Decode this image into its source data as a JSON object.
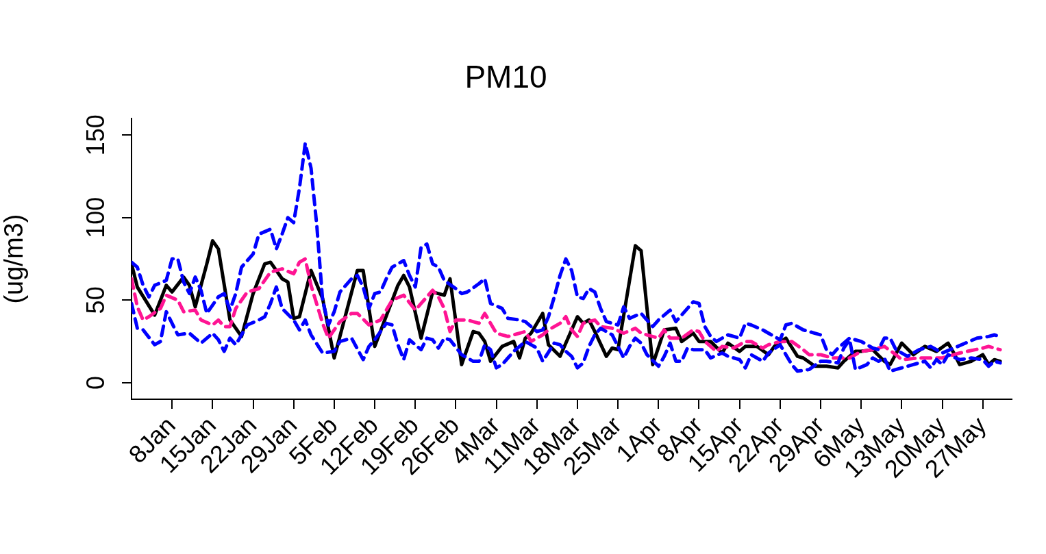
{
  "chart_data": {
    "type": "line",
    "title": "PM10",
    "ylabel": "(ug/m3)",
    "xlim": [
      "--01-01",
      "--06-01"
    ],
    "ylim": [
      -10,
      160
    ],
    "yticks": [
      0,
      50,
      100,
      150
    ],
    "xticks": [
      {
        "value": "--01-08",
        "label": "8Jan"
      },
      {
        "value": "--01-15",
        "label": "15Jan"
      },
      {
        "value": "--01-22",
        "label": "22Jan"
      },
      {
        "value": "--01-29",
        "label": "29Jan"
      },
      {
        "value": "--02-05",
        "label": "5Feb"
      },
      {
        "value": "--02-12",
        "label": "12Feb"
      },
      {
        "value": "--02-19",
        "label": "19Feb"
      },
      {
        "value": "--02-26",
        "label": "26Feb"
      },
      {
        "value": "--03-04",
        "label": "4Mar"
      },
      {
        "value": "--03-11",
        "label": "11Mar"
      },
      {
        "value": "--03-18",
        "label": "18Mar"
      },
      {
        "value": "--03-25",
        "label": "25Mar"
      },
      {
        "value": "--04-01",
        "label": "1Apr"
      },
      {
        "value": "--04-08",
        "label": "8Apr"
      },
      {
        "value": "--04-15",
        "label": "15Apr"
      },
      {
        "value": "--04-22",
        "label": "22Apr"
      },
      {
        "value": "--04-29",
        "label": "29Apr"
      },
      {
        "value": "--05-06",
        "label": "6May"
      },
      {
        "value": "--05-13",
        "label": "13May"
      },
      {
        "value": "--05-20",
        "label": "20May"
      },
      {
        "value": "--05-27",
        "label": "27May"
      }
    ],
    "grid": false,
    "legend": false,
    "marker": "none",
    "series": [
      {
        "color": "#0000ff",
        "line_style": "dashed",
        "x": [
          "--01-01",
          "--01-02",
          "--01-03",
          "--01-04",
          "--01-05",
          "--01-07",
          "--01-08",
          "--01-09",
          "--01-10",
          "--01-11",
          "--01-12",
          "--01-13",
          "--01-14",
          "--01-16",
          "--01-17",
          "--01-18",
          "--01-19",
          "--01-20",
          "--01-22",
          "--01-23",
          "--01-25",
          "--01-26",
          "--01-27",
          "--01-28",
          "--01-29",
          "--01-30",
          "--01-31",
          "--02-01",
          "--02-02",
          "--02-03",
          "--02-04",
          "--02-05",
          "--02-06",
          "--02-08",
          "--02-09",
          "--02-10",
          "--02-11",
          "--02-12",
          "--02-13",
          "--02-14",
          "--02-15",
          "--02-17",
          "--02-18",
          "--02-19",
          "--02-20",
          "--02-21",
          "--02-22",
          "--02-23",
          "--02-24",
          "--02-26",
          "--02-27",
          "--02-28",
          "--03-01",
          "--03-02",
          "--03-03",
          "--03-05",
          "--03-06",
          "--03-08",
          "--03-09",
          "--03-11",
          "--03-12",
          "--03-13",
          "--03-14",
          "--03-15",
          "--03-16",
          "--03-17",
          "--03-18",
          "--03-19",
          "--03-20",
          "--03-21",
          "--03-22",
          "--03-23",
          "--03-25",
          "--03-26",
          "--03-27",
          "--03-29",
          "--03-31",
          "--04-01",
          "--04-03",
          "--04-04",
          "--04-05",
          "--04-07",
          "--04-08",
          "--04-09",
          "--04-10",
          "--04-11",
          "--04-13",
          "--04-15",
          "--04-16",
          "--04-17",
          "--04-19",
          "--04-21",
          "--04-22",
          "--04-23",
          "--04-24",
          "--04-26",
          "--04-28",
          "--04-29",
          "--04-30",
          "--05-01",
          "--05-02",
          "--05-04",
          "--05-06",
          "--05-08",
          "--05-09",
          "--05-10",
          "--05-11",
          "--05-12",
          "--05-14",
          "--05-16",
          "--05-18",
          "--05-20",
          "--05-22",
          "--05-24",
          "--05-26",
          "--05-28",
          "--05-29",
          "--05-30"
        ],
        "values": [
          73,
          70,
          59,
          52,
          59,
          62,
          75,
          75,
          61,
          54,
          64,
          56,
          42,
          52,
          54,
          44,
          54,
          70,
          78,
          90,
          93,
          81,
          90,
          100,
          97,
          118,
          145,
          130,
          95,
          50,
          35,
          43,
          55,
          63,
          65,
          58,
          45,
          54,
          55,
          63,
          70,
          74,
          65,
          58,
          82,
          84,
          72,
          70,
          62,
          57,
          54,
          55,
          60,
          63,
          48,
          45,
          39,
          38,
          37,
          31,
          32,
          40,
          52,
          65,
          75,
          68,
          52,
          51,
          57,
          55,
          45,
          37,
          35,
          46,
          39,
          42,
          34,
          38,
          44,
          37,
          41,
          49,
          48,
          34,
          28,
          25,
          29,
          27,
          36,
          35,
          32,
          28,
          26,
          35,
          36,
          32,
          30,
          29,
          20,
          17,
          21,
          27,
          25,
          21,
          20,
          27,
          27,
          20,
          16,
          20,
          22,
          18,
          21,
          24,
          27,
          28,
          29,
          28
        ]
      },
      {
        "color": "#0000ff",
        "line_style": "dashed",
        "x": [
          "--01-01",
          "--01-02",
          "--01-03",
          "--01-05",
          "--01-06",
          "--01-07",
          "--01-09",
          "--01-11",
          "--01-12",
          "--01-13",
          "--01-15",
          "--01-16",
          "--01-17",
          "--01-18",
          "--01-19",
          "--01-21",
          "--01-23",
          "--01-24",
          "--01-25",
          "--01-26",
          "--01-27",
          "--01-29",
          "--01-30",
          "--01-31",
          "--02-01",
          "--02-03",
          "--02-05",
          "--02-06",
          "--02-08",
          "--02-10",
          "--02-11",
          "--02-12",
          "--02-14",
          "--02-15",
          "--02-16",
          "--02-17",
          "--02-18",
          "--02-20",
          "--02-21",
          "--02-22",
          "--02-23",
          "--02-24",
          "--02-25",
          "--02-27",
          "--02-29",
          "--03-01",
          "--03-02",
          "--03-03",
          "--03-04",
          "--03-05",
          "--03-06",
          "--03-07",
          "--03-09",
          "--03-11",
          "--03-12",
          "--03-14",
          "--03-15",
          "--03-16",
          "--03-17",
          "--03-18",
          "--03-19",
          "--03-20",
          "--03-21",
          "--03-22",
          "--03-24",
          "--03-26",
          "--03-27",
          "--03-28",
          "--03-29",
          "--03-30",
          "--04-01",
          "--04-02",
          "--04-03",
          "--04-04",
          "--04-05",
          "--04-06",
          "--04-07",
          "--04-09",
          "--04-10",
          "--04-12",
          "--04-13",
          "--04-14",
          "--04-15",
          "--04-16",
          "--04-17",
          "--04-19",
          "--04-20",
          "--04-22",
          "--04-23",
          "--04-24",
          "--04-25",
          "--04-27",
          "--04-29",
          "--04-30",
          "--05-02",
          "--05-03",
          "--05-04",
          "--05-05",
          "--05-07",
          "--05-08",
          "--05-09",
          "--05-10",
          "--05-11",
          "--05-13",
          "--05-15",
          "--05-17",
          "--05-18",
          "--05-19",
          "--05-20",
          "--05-21",
          "--05-23",
          "--05-25",
          "--05-27",
          "--05-28",
          "--05-29",
          "--05-30"
        ],
        "values": [
          48,
          33,
          32,
          23,
          25,
          43,
          29,
          30,
          27,
          24,
          30,
          26,
          19,
          27,
          23,
          35,
          38,
          40,
          48,
          58,
          45,
          38,
          32,
          38,
          29,
          18,
          19,
          25,
          27,
          14,
          22,
          26,
          36,
          35,
          23,
          14,
          26,
          20,
          27,
          26,
          21,
          27,
          26,
          17,
          13,
          13,
          23,
          20,
          9,
          11,
          15,
          19,
          25,
          21,
          13,
          24,
          23,
          19,
          16,
          9,
          12,
          22,
          29,
          33,
          29,
          15,
          22,
          27,
          24,
          17,
          10,
          16,
          24,
          13,
          13,
          21,
          20,
          20,
          15,
          18,
          16,
          15,
          14,
          9,
          17,
          13,
          18,
          23,
          17,
          11,
          7,
          8,
          13,
          13,
          12,
          21,
          26,
          8,
          11,
          15,
          13,
          15,
          7,
          9,
          11,
          13,
          9,
          14,
          11,
          17,
          14,
          15,
          14,
          10,
          13,
          12
        ]
      },
      {
        "color": "#ff1493",
        "line_style": "dashed",
        "x": [
          "--01-01",
          "--01-02",
          "--01-03",
          "--01-04",
          "--01-06",
          "--01-07",
          "--01-09",
          "--01-10",
          "--01-12",
          "--01-13",
          "--01-15",
          "--01-16",
          "--01-17",
          "--01-18",
          "--01-19",
          "--01-21",
          "--01-23",
          "--01-25",
          "--01-27",
          "--01-29",
          "--01-30",
          "--01-31",
          "--02-01",
          "--02-03",
          "--02-04",
          "--02-06",
          "--02-08",
          "--02-09",
          "--02-11",
          "--02-13",
          "--02-15",
          "--02-17",
          "--02-19",
          "--02-20",
          "--02-22",
          "--02-23",
          "--02-24",
          "--02-25",
          "--02-26",
          "--02-28",
          "--03-01",
          "--03-02",
          "--03-04",
          "--03-06",
          "--03-07",
          "--03-09",
          "--03-10",
          "--03-12",
          "--03-13",
          "--03-15",
          "--03-16",
          "--03-17",
          "--03-18",
          "--03-19",
          "--03-21",
          "--03-22",
          "--03-24",
          "--03-26",
          "--03-28",
          "--03-29",
          "--04-01",
          "--04-02",
          "--04-03",
          "--04-05",
          "--04-07",
          "--04-08",
          "--04-09",
          "--04-11",
          "--04-12",
          "--04-14",
          "--04-16",
          "--04-17",
          "--04-19",
          "--04-20",
          "--04-22",
          "--04-24",
          "--04-26",
          "--04-27",
          "--04-29",
          "--05-01",
          "--05-04",
          "--05-06",
          "--05-08",
          "--05-10",
          "--05-12",
          "--05-13",
          "--05-16",
          "--05-18",
          "--05-20",
          "--05-23",
          "--05-27",
          "--05-28",
          "--05-30"
        ],
        "values": [
          63,
          46,
          38,
          40,
          45,
          53,
          50,
          43,
          44,
          38,
          35,
          38,
          34,
          34,
          45,
          55,
          57,
          67,
          69,
          66,
          73,
          75,
          59,
          36,
          27,
          37,
          42,
          42,
          35,
          38,
          50,
          53,
          44,
          48,
          56,
          52,
          45,
          31,
          38,
          38,
          36,
          42,
          30,
          28,
          29,
          31,
          25,
          29,
          32,
          36,
          40,
          32,
          28,
          36,
          38,
          34,
          33,
          30,
          33,
          30,
          27,
          32,
          27,
          27,
          32,
          31,
          25,
          19,
          22,
          21,
          25,
          25,
          21,
          23,
          25,
          25,
          20,
          17,
          17,
          15,
          15,
          19,
          20,
          22,
          17,
          14,
          15,
          15,
          15,
          18,
          21,
          22,
          20
        ]
      },
      {
        "color": "#000000",
        "line_style": "solid",
        "x": [
          "--01-01",
          "--01-02",
          "--01-05",
          "--01-07",
          "--01-08",
          "--01-10",
          "--01-11",
          "--01-12",
          "--01-14",
          "--01-15",
          "--01-16",
          "--01-18",
          "--01-20",
          "--01-22",
          "--01-24",
          "--01-25",
          "--01-27",
          "--01-28",
          "--01-29",
          "--01-30",
          "--02-01",
          "--02-03",
          "--02-05",
          "--02-09",
          "--02-10",
          "--02-12",
          "--02-16",
          "--02-17",
          "--02-18",
          "--02-20",
          "--02-22",
          "--02-24",
          "--02-25",
          "--02-27",
          "--02-29",
          "--03-01",
          "--03-02",
          "--03-03",
          "--03-05",
          "--03-07",
          "--03-08",
          "--03-09",
          "--03-10",
          "--03-12",
          "--03-13",
          "--03-15",
          "--03-18",
          "--03-19",
          "--03-20",
          "--03-21",
          "--03-23",
          "--03-24",
          "--03-25",
          "--03-28",
          "--03-29",
          "--03-31",
          "--04-02",
          "--04-04",
          "--04-05",
          "--04-07",
          "--04-08",
          "--04-10",
          "--04-12",
          "--04-13",
          "--04-15",
          "--04-16",
          "--04-18",
          "--04-20",
          "--04-21",
          "--04-23",
          "--04-25",
          "--04-26",
          "--04-28",
          "--04-30",
          "--05-02",
          "--05-03",
          "--05-05",
          "--05-06",
          "--05-08",
          "--05-10",
          "--05-11",
          "--05-13",
          "--05-15",
          "--05-17",
          "--05-19",
          "--05-21",
          "--05-22",
          "--05-23",
          "--05-25",
          "--05-27",
          "--05-28",
          "--05-29",
          "--05-30"
        ],
        "values": [
          72,
          58,
          41,
          59,
          55,
          64,
          59,
          46,
          72,
          86,
          81,
          38,
          28,
          54,
          72,
          73,
          63,
          61,
          39,
          40,
          68,
          51,
          15,
          68,
          68,
          22,
          59,
          65,
          58,
          27,
          55,
          53,
          63,
          11,
          31,
          30,
          25,
          13,
          22,
          25,
          15,
          27,
          30,
          42,
          23,
          16,
          40,
          36,
          38,
          31,
          16,
          21,
          20,
          83,
          80,
          11,
          32,
          33,
          25,
          30,
          25,
          25,
          18,
          24,
          19,
          22,
          22,
          17,
          22,
          27,
          16,
          15,
          10,
          10,
          9,
          13,
          19,
          19,
          20,
          13,
          11,
          24,
          17,
          22,
          19,
          24,
          18,
          11,
          13,
          17,
          11,
          14,
          13
        ]
      }
    ]
  }
}
